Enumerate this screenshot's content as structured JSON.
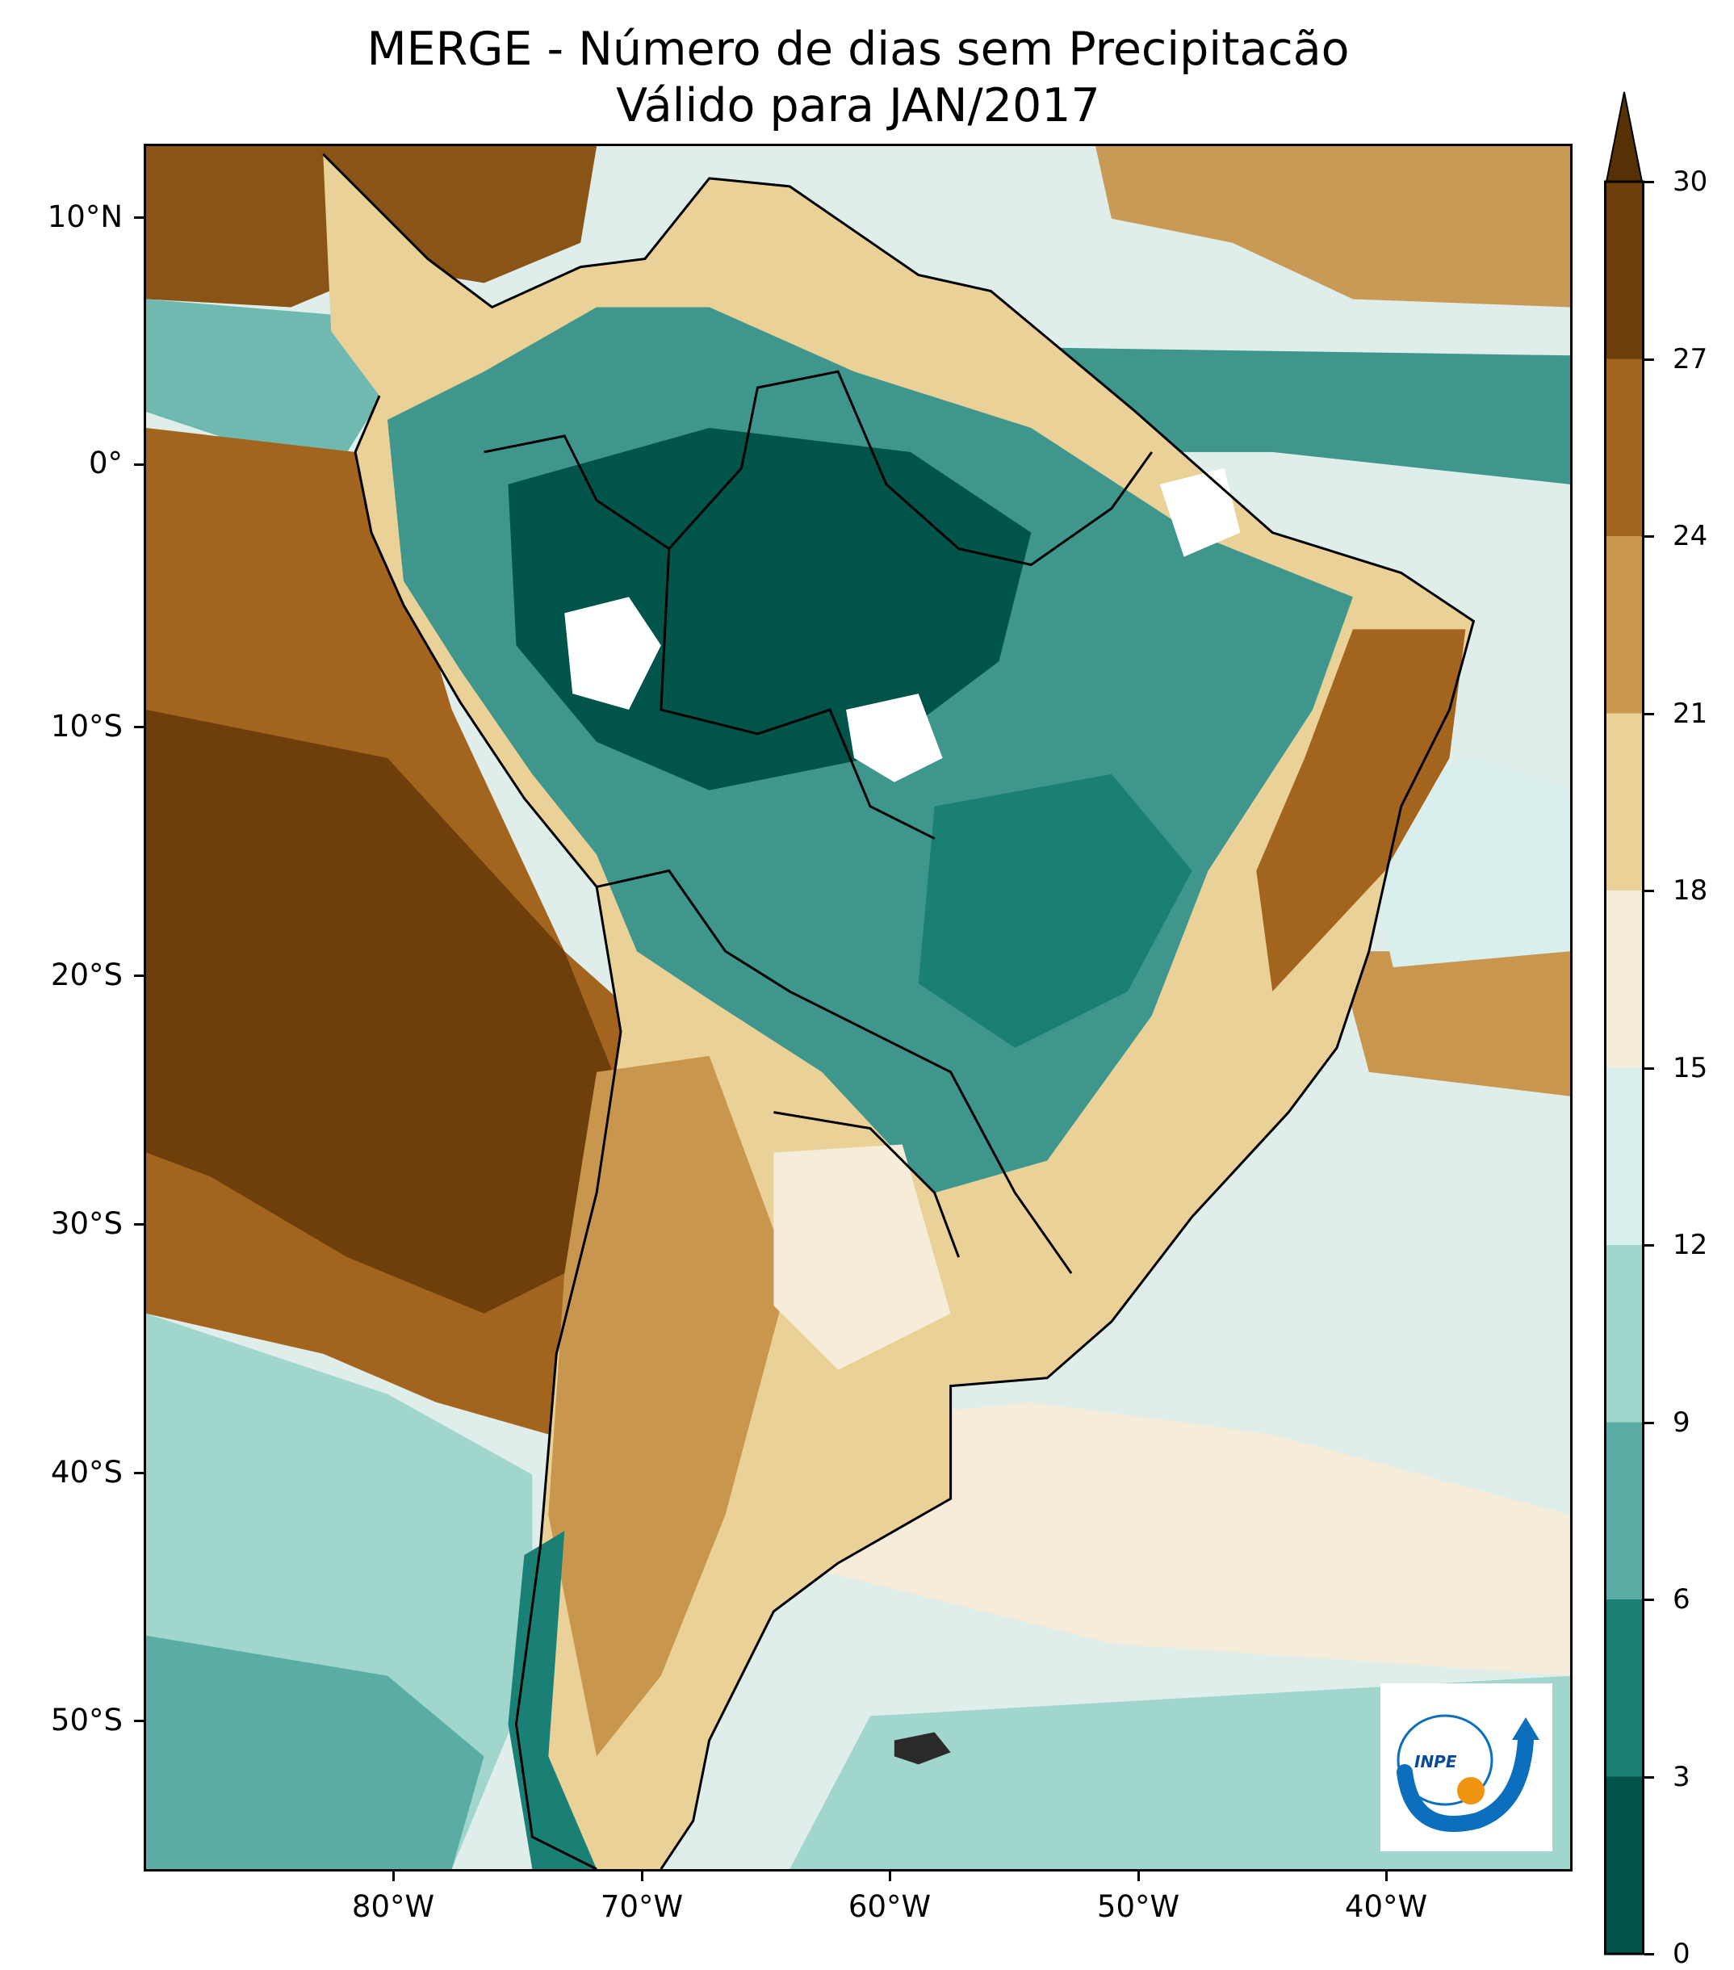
{
  "title": {
    "line1": "MERGE - Número de dias sem Precipitacão",
    "line2": "Válido para JAN/2017"
  },
  "map": {
    "lon_range": [
      -90,
      -32
    ],
    "lat_range": [
      -57,
      13
    ],
    "lat_ticks": [
      {
        "value": 10,
        "label": "10°N"
      },
      {
        "value": 0,
        "label": "0°"
      },
      {
        "value": -10,
        "label": "10°S"
      },
      {
        "value": -20,
        "label": "20°S"
      },
      {
        "value": -30,
        "label": "30°S"
      },
      {
        "value": -40,
        "label": "40°S"
      },
      {
        "value": -50,
        "label": "50°S"
      }
    ],
    "lon_ticks": [
      {
        "value": -80,
        "label": "80°W"
      },
      {
        "value": -70,
        "label": "70°W"
      },
      {
        "value": -60,
        "label": "60°W"
      },
      {
        "value": -50,
        "label": "50°W"
      },
      {
        "value": -40,
        "label": "40°W"
      }
    ]
  },
  "colorbar": {
    "min": 0,
    "max": 30,
    "extend": "max",
    "ticks": [
      "0",
      "3",
      "6",
      "9",
      "12",
      "15",
      "18",
      "21",
      "24",
      "27",
      "30"
    ],
    "bins": [
      {
        "from": 0,
        "to": 3,
        "color": "#01544a"
      },
      {
        "from": 3,
        "to": 6,
        "color": "#1a7f75"
      },
      {
        "from": 6,
        "to": 9,
        "color": "#5aada4"
      },
      {
        "from": 9,
        "to": 12,
        "color": "#a1d6cd"
      },
      {
        "from": 12,
        "to": 15,
        "color": "#d9efed"
      },
      {
        "from": 15,
        "to": 18,
        "color": "#f5edd9"
      },
      {
        "from": 18,
        "to": 21,
        "color": "#ead198"
      },
      {
        "from": 21,
        "to": 24,
        "color": "#c8964d"
      },
      {
        "from": 24,
        "to": 27,
        "color": "#a3651e"
      },
      {
        "from": 27,
        "to": 30,
        "color": "#6e3f0a"
      }
    ],
    "extend_color": "#573106"
  },
  "logo": {
    "text": "INPE",
    "icon": "inpe-logo-icon",
    "colors": {
      "blue": "#0b6fbd",
      "orange": "#f0930e"
    }
  }
}
